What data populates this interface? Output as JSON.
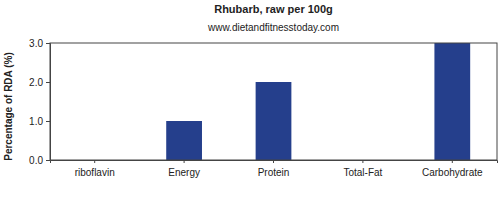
{
  "chart_data": {
    "type": "bar",
    "title": "Rhubarb, raw per 100g",
    "subtitle": "www.dietandfitnesstoday.com",
    "y_label": "Percentage of RDA (%)",
    "categories": [
      "riboflavin",
      "Energy",
      "Protein",
      "Total-Fat",
      "Carbohydrate"
    ],
    "values": [
      0,
      1,
      2,
      0,
      3
    ],
    "color": "#253f8c",
    "ylim": [
      0,
      3
    ],
    "yticks": [
      {
        "value": 0,
        "label": "0.0"
      },
      {
        "value": 1,
        "label": "1.0"
      },
      {
        "value": 2,
        "label": "2.0"
      },
      {
        "value": 3,
        "label": "3.0"
      }
    ],
    "grid": false
  }
}
